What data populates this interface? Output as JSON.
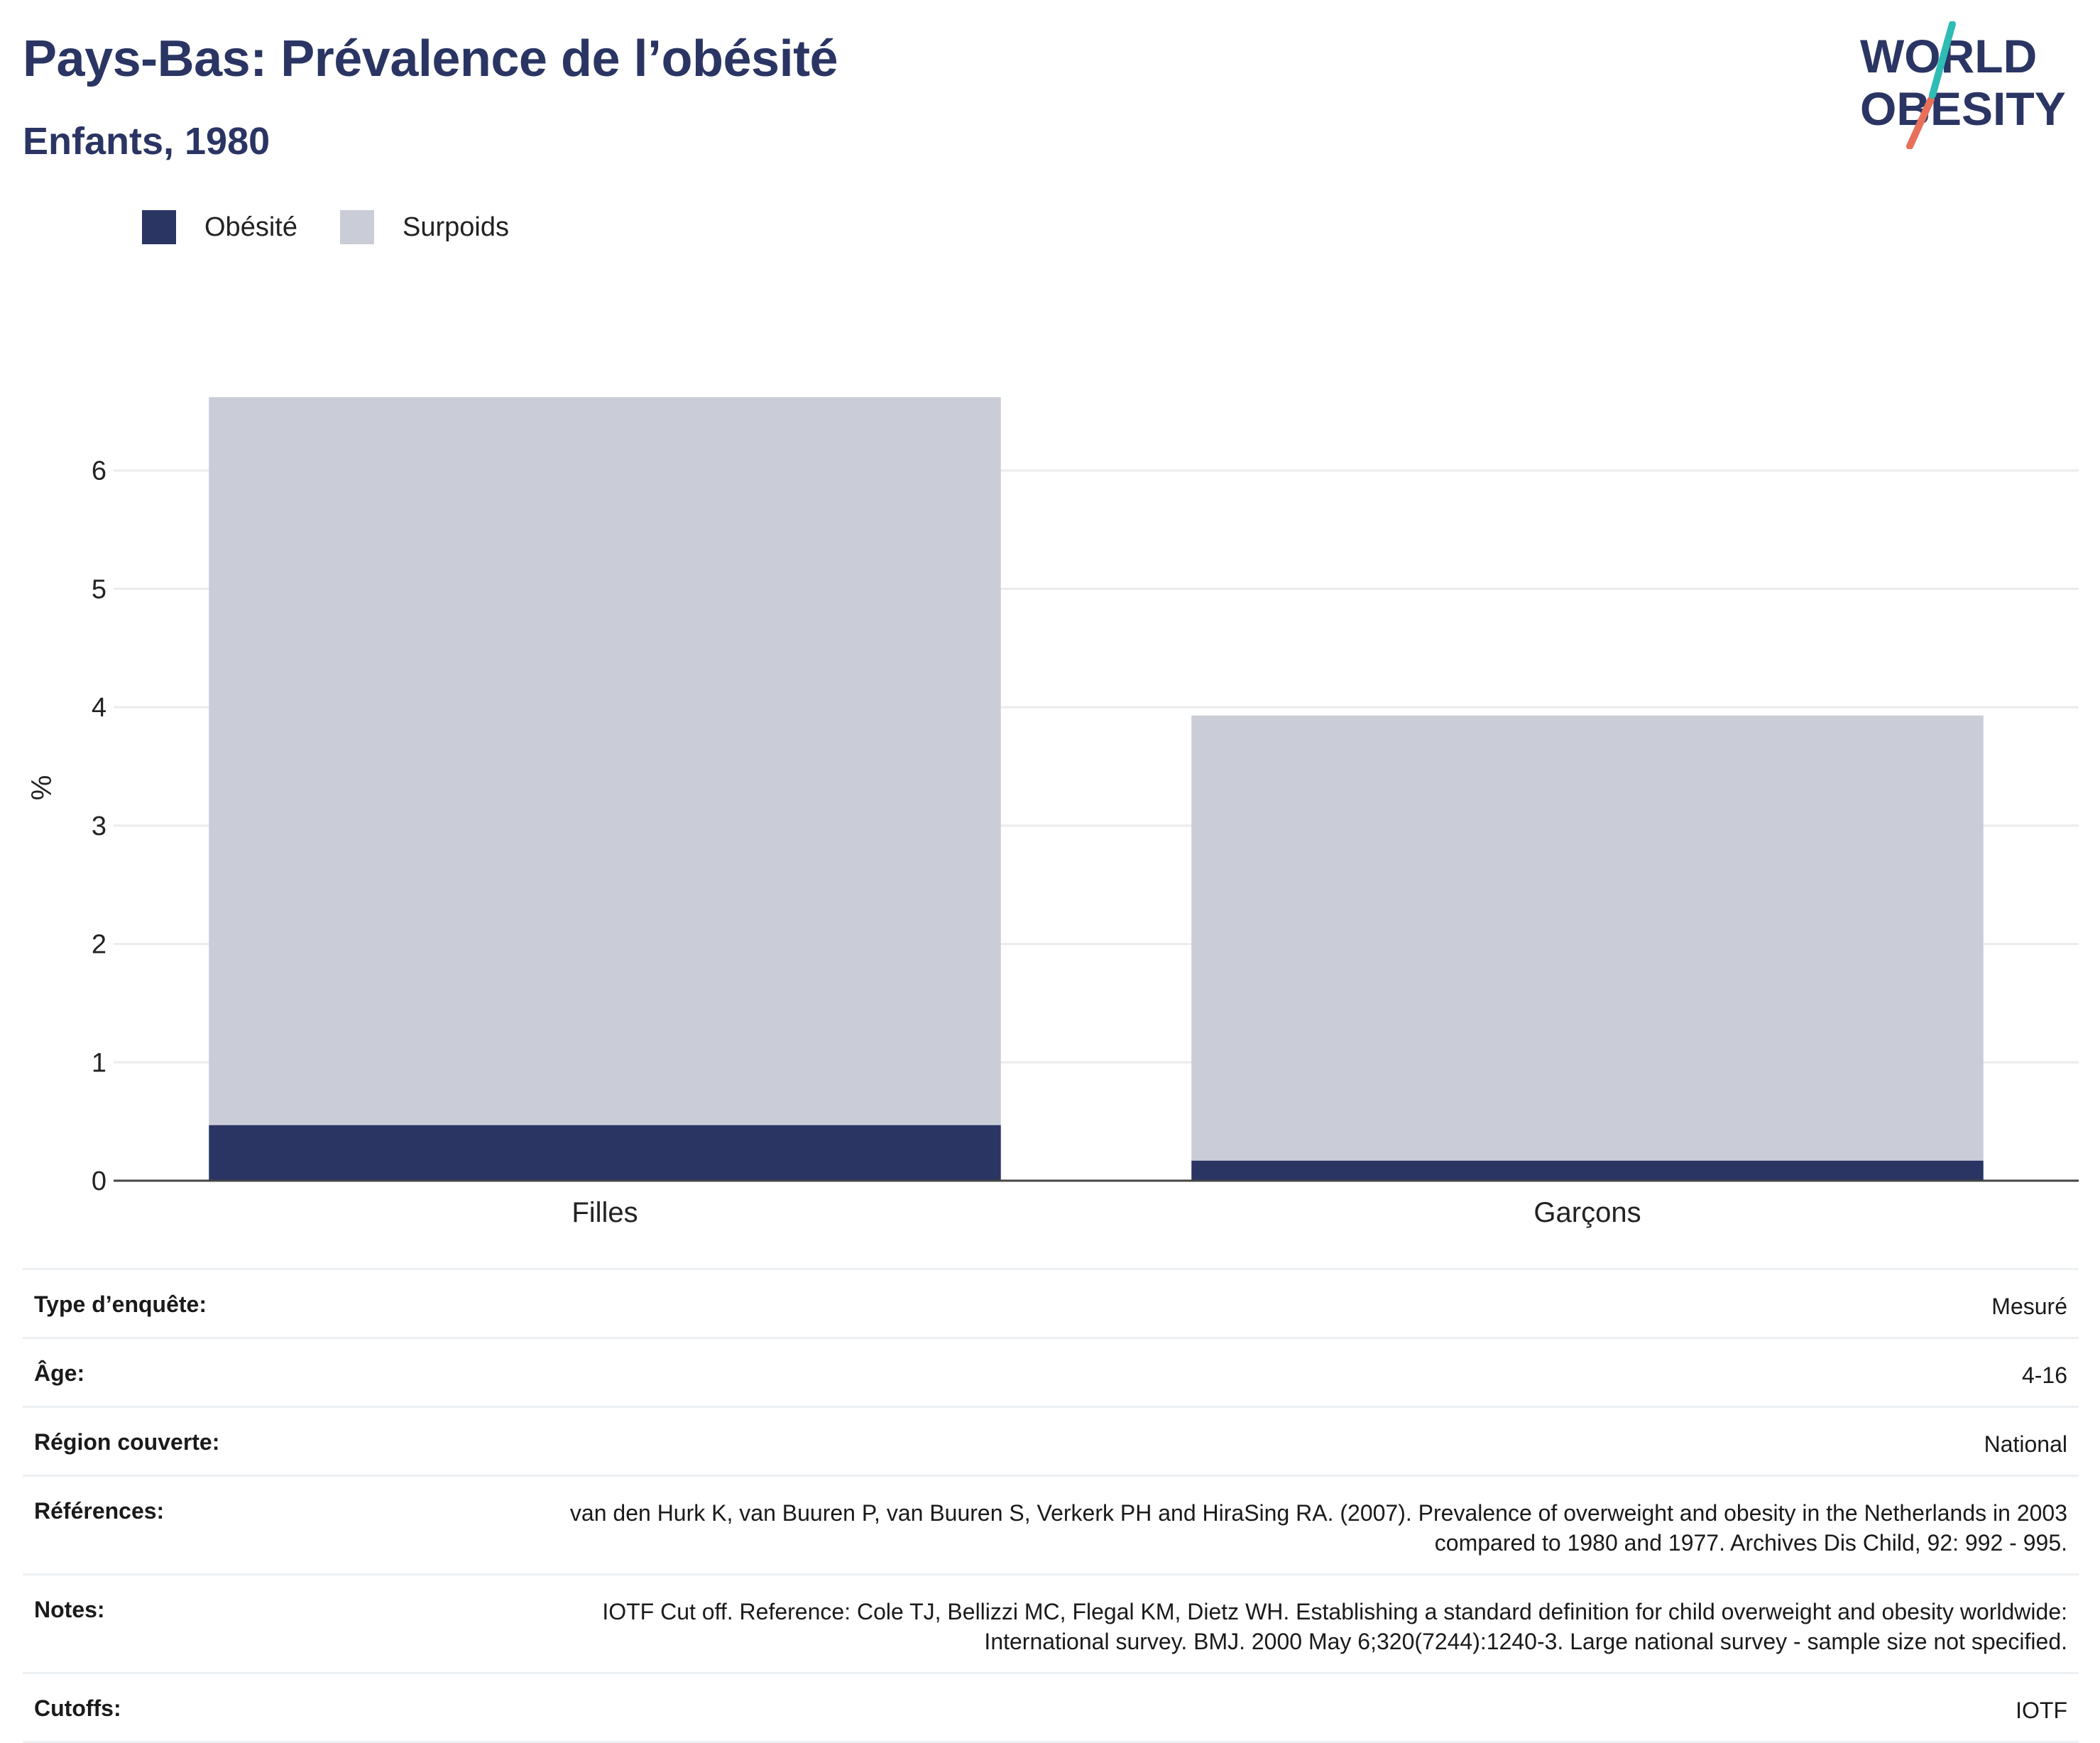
{
  "header": {
    "title": "Pays-Bas: Prévalence de l’obésité",
    "subtitle": "Enfants, 1980"
  },
  "logo": {
    "line1": "WORLD",
    "line2": "OBESITY"
  },
  "colors": {
    "obesity": "#2a3563",
    "overweight": "#caccd7",
    "grid": "#ebebeb",
    "axis": "#444444"
  },
  "chart_data": {
    "type": "bar",
    "stacked": true,
    "categories": [
      "Filles",
      "Garçons"
    ],
    "series": [
      {
        "name": "Obésité",
        "values": [
          0.47,
          0.17
        ]
      },
      {
        "name": "Surpoids",
        "values": [
          6.15,
          3.76
        ]
      }
    ],
    "ylabel": "%",
    "ylim": [
      0,
      7
    ],
    "yticks": [
      0,
      1,
      2,
      3,
      4,
      5,
      6
    ],
    "grid": true,
    "legend": "top-left"
  },
  "meta": [
    {
      "label": "Type d’enquête:",
      "value": "Mesuré"
    },
    {
      "label": "Âge:",
      "value": "4-16"
    },
    {
      "label": "Région couverte:",
      "value": "National"
    },
    {
      "label": "Références:",
      "value": "van den Hurk K, van Buuren P, van Buuren S, Verkerk PH and HiraSing RA. (2007). Prevalence of overweight and obesity in the Netherlands in 2003 compared to 1980 and 1977. Archives Dis Child, 92: 992 - 995."
    },
    {
      "label": "Notes:",
      "value": "IOTF Cut off. Reference: Cole TJ, Bellizzi MC, Flegal KM, Dietz WH. Establishing a standard definition for child overweight and obesity worldwide: International survey. BMJ. 2000 May 6;320(7244):1240-3. Large national survey - sample size not specified."
    },
    {
      "label": "Cutoffs:",
      "value": "IOTF"
    }
  ]
}
